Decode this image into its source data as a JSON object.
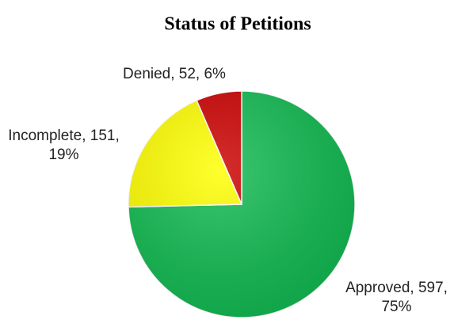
{
  "chart_data": {
    "type": "pie",
    "title": "Status of Petitions",
    "categories": [
      "Approved",
      "Incomplete",
      "Denied"
    ],
    "values": [
      597,
      151,
      52
    ],
    "value_labels": [
      "Approved, 597, 75%",
      "Incomplete, 151, 19%",
      "Denied, 52, 6%"
    ],
    "colors": [
      "#12bb52",
      "#ffff00",
      "#cc0000"
    ]
  }
}
